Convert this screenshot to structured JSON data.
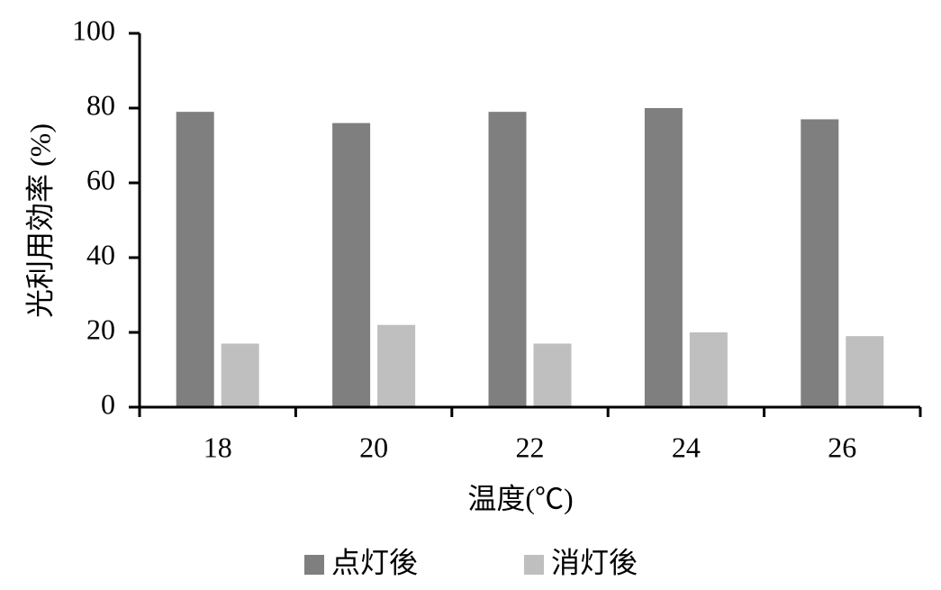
{
  "chart_data": {
    "type": "bar",
    "y_label": "光利用効率 (%)",
    "x_label": "温度(℃)",
    "categories": [
      "18",
      "20",
      "22",
      "24",
      "26"
    ],
    "series": [
      {
        "name": "点灯後",
        "color": "#7f7f7f",
        "values": [
          79,
          76,
          79,
          80,
          77
        ]
      },
      {
        "name": "消灯後",
        "color": "#bfbfbf",
        "values": [
          17,
          22,
          17,
          20,
          19
        ]
      }
    ],
    "ylim": [
      0,
      100
    ],
    "yticks": [
      0,
      20,
      40,
      60,
      80,
      100
    ],
    "grid": false,
    "legend": "bottom"
  }
}
